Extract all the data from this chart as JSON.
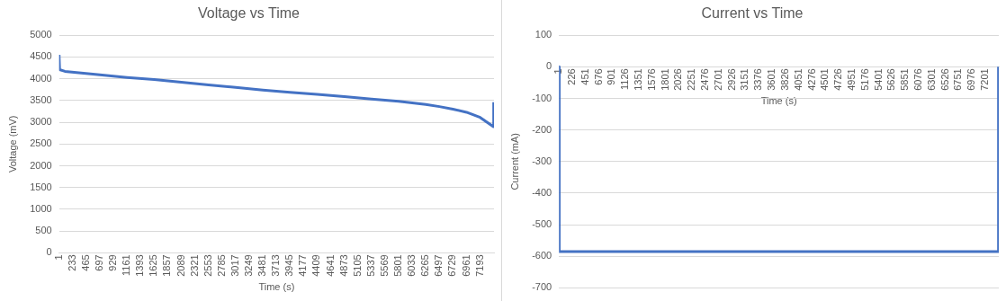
{
  "chart_data": [
    {
      "type": "line",
      "title": "Voltage vs Time",
      "xlabel": "Time (s)",
      "ylabel": "Voltage (mV)",
      "xlim": [
        1,
        7430
      ],
      "xticks": [
        1,
        233,
        465,
        697,
        929,
        1161,
        1393,
        1625,
        1857,
        2089,
        2321,
        2553,
        2785,
        3017,
        3249,
        3481,
        3713,
        3945,
        4177,
        4409,
        4641,
        4873,
        5105,
        5337,
        5569,
        5801,
        6033,
        6265,
        6497,
        6729,
        6961,
        7193
      ],
      "ylim": [
        0,
        5000
      ],
      "yticks": [
        0,
        500,
        1000,
        1500,
        2000,
        2500,
        3000,
        3500,
        4000,
        4500,
        5000
      ],
      "grid": "y",
      "legend": false,
      "marker": "none",
      "line_style": "solid",
      "series": [
        {
          "color": "#4472c4",
          "x": [
            1,
            10,
            100,
            300,
            697,
            1161,
            1625,
            2089,
            2553,
            3017,
            3481,
            3945,
            4409,
            4873,
            5337,
            5801,
            6265,
            6497,
            6729,
            6961,
            7193,
            7420,
            7425
          ],
          "values": [
            4550,
            4210,
            4170,
            4140,
            4090,
            4030,
            3980,
            3920,
            3860,
            3800,
            3740,
            3690,
            3640,
            3590,
            3535,
            3480,
            3410,
            3360,
            3300,
            3230,
            3110,
            2900,
            3460
          ]
        }
      ]
    },
    {
      "type": "line",
      "title": "Current vs Time",
      "xlabel": "Time (s)",
      "ylabel": "Current (mA)",
      "xlim": [
        1,
        7430
      ],
      "xticks": [
        1,
        226,
        451,
        676,
        901,
        1126,
        1351,
        1576,
        1801,
        2026,
        2251,
        2476,
        2701,
        2926,
        3151,
        3376,
        3601,
        3826,
        4051,
        4276,
        4501,
        4726,
        4951,
        5176,
        5401,
        5626,
        5851,
        6076,
        6301,
        6526,
        6751,
        6976,
        7201
      ],
      "ylim": [
        -700,
        100
      ],
      "yticks": [
        -700,
        -600,
        -500,
        -400,
        -300,
        -200,
        -100,
        0,
        100
      ],
      "grid": "y",
      "legend": false,
      "marker": "none",
      "line_style": "solid",
      "series": [
        {
          "color": "#4472c4",
          "x": [
            1,
            5,
            7420,
            7425
          ],
          "values": [
            0,
            -585,
            -585,
            0
          ]
        }
      ]
    }
  ]
}
